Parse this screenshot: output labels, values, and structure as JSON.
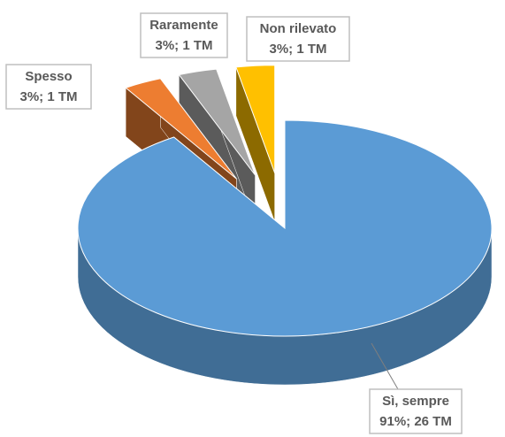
{
  "chart_data": {
    "type": "pie3d",
    "categories": [
      "Sì, sempre",
      "Spesso",
      "Raramente",
      "Non rilevato"
    ],
    "values": [
      91,
      3,
      3,
      3
    ],
    "value_labels": [
      "91%; 26 TM",
      "3%; 1 TM",
      "3%; 1 TM",
      "3%; 1 TM"
    ],
    "colors": [
      "#5b9bd5",
      "#ed7d31",
      "#a5a5a5",
      "#ffc000"
    ],
    "exploded": [
      false,
      true,
      true,
      true
    ]
  }
}
